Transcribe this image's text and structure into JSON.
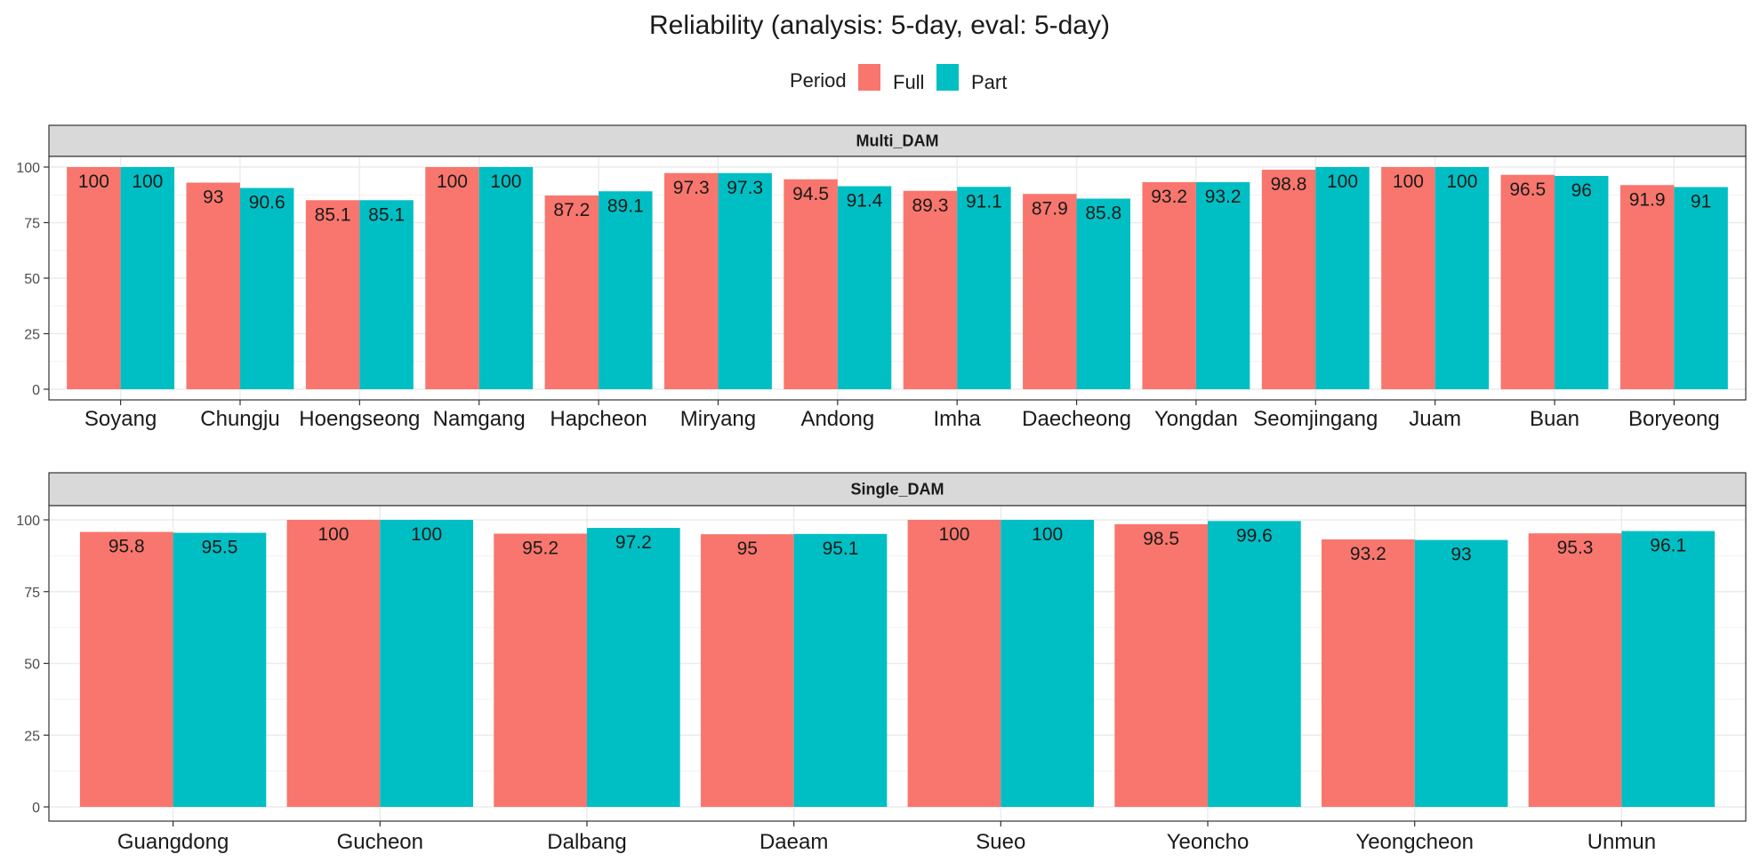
{
  "chart_data": {
    "type": "bar",
    "title": "Reliability (analysis: 5-day, eval: 5-day)",
    "legend": {
      "title": "Period",
      "placement": "top",
      "entries": [
        {
          "name": "Full",
          "color": "#F8766D"
        },
        {
          "name": "Part",
          "color": "#00BFC4"
        }
      ]
    },
    "ylim": [
      0,
      100
    ],
    "yticks": [
      0,
      25,
      50,
      75,
      100
    ],
    "grid": true,
    "panels": [
      {
        "strip": "Multi_DAM",
        "categories": [
          "Soyang",
          "Chungju",
          "Hoengseong",
          "Namgang",
          "Hapcheon",
          "Miryang",
          "Andong",
          "Imha",
          "Daecheong",
          "Yongdan",
          "Seomjingang",
          "Juam",
          "Buan",
          "Boryeong"
        ],
        "series": [
          {
            "name": "Full",
            "values": [
              100,
              93,
              85.1,
              100,
              87.2,
              97.3,
              94.5,
              89.3,
              87.9,
              93.2,
              98.8,
              100,
              96.5,
              91.9
            ]
          },
          {
            "name": "Part",
            "values": [
              100,
              90.6,
              85.1,
              100,
              89.1,
              97.3,
              91.4,
              91.1,
              85.8,
              93.2,
              100,
              100,
              96,
              91
            ]
          }
        ]
      },
      {
        "strip": "Single_DAM",
        "categories": [
          "Guangdong",
          "Gucheon",
          "Dalbang",
          "Daeam",
          "Sueo",
          "Yeoncho",
          "Yeongcheon",
          "Unmun"
        ],
        "series": [
          {
            "name": "Full",
            "values": [
              95.8,
              100,
              95.2,
              95,
              100,
              98.5,
              93.2,
              95.3
            ]
          },
          {
            "name": "Part",
            "values": [
              95.5,
              100,
              97.2,
              95.1,
              100,
              99.6,
              93,
              96.1
            ]
          }
        ]
      }
    ]
  }
}
